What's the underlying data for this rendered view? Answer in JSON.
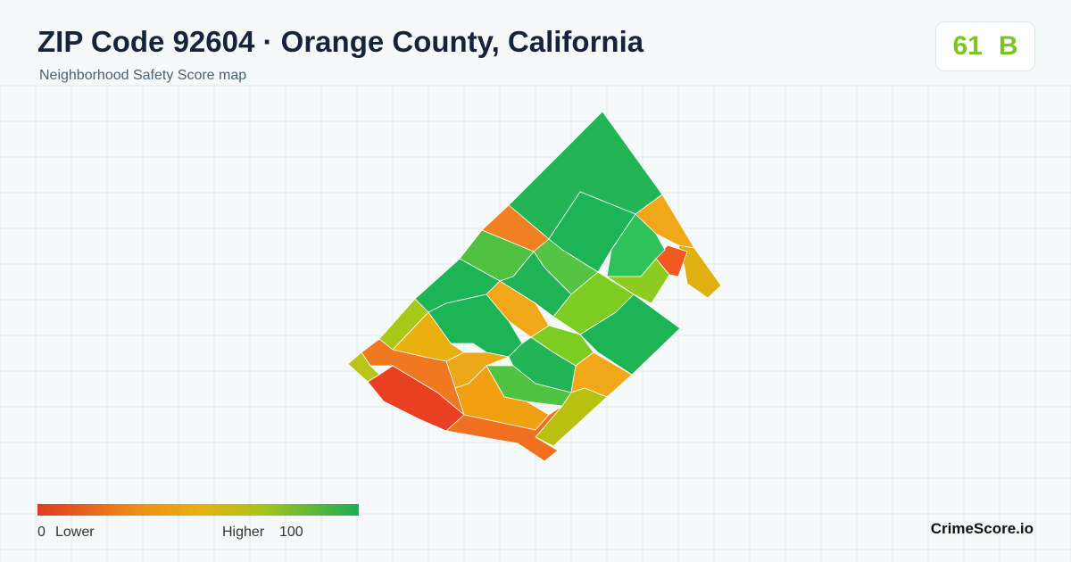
{
  "header": {
    "title": "ZIP Code 92604 · Orange County, California",
    "subtitle": "Neighborhood Safety Score map"
  },
  "badge": {
    "score": 61,
    "grade": "B"
  },
  "legend": {
    "min": 0,
    "min_label": "Lower",
    "max_label": "Higher",
    "max": 100
  },
  "brand": "CrimeScore.io"
}
